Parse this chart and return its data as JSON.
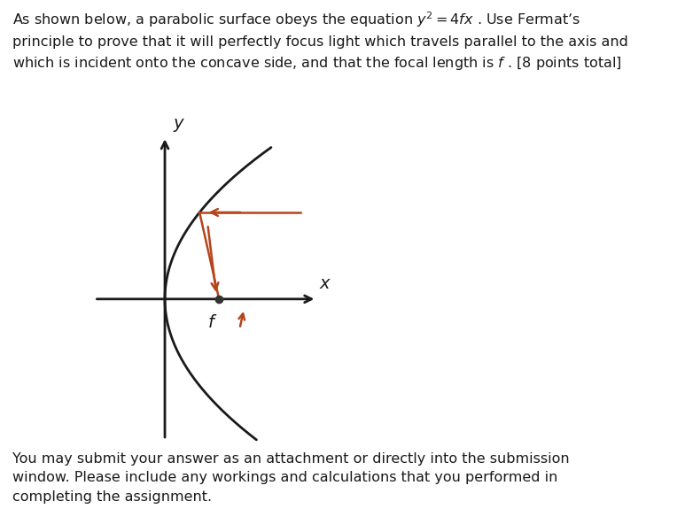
{
  "bg_color": "#ffffff",
  "parabola_color": "#1a1a1a",
  "axis_color": "#1a1a1a",
  "ray_color": "#b5451b",
  "focal_dot_color": "#333333",
  "top_line1": "As shown below, a parabolic surface obeys the equation $y^2 = 4fx$ . Use Fermat’s",
  "top_line2": "principle to prove that it will perfectly focus light which travels parallel to the axis and",
  "top_line3": "which is incident onto the concave side, and that the focal length is $f$ . [8 points total]",
  "bottom_line1": "You may submit your answer as an attachment or directly into the submission",
  "bottom_line2": "window. Please include any workings and calculations that you performed in",
  "bottom_line3": "completing the assignment.",
  "axis_x_label": "$x$",
  "axis_y_label": "$y$",
  "focal_label": "$f$",
  "parabola_f": 1.0,
  "y_hit": 1.6,
  "ray_right_x": 2.5,
  "xlim": [
    -1.5,
    3.0
  ],
  "ylim": [
    -2.8,
    3.2
  ],
  "focus_x": 1.0,
  "focus_y": 0.0,
  "fontsize_text": 11.5,
  "fontsize_axis_label": 14,
  "fontsize_focal_label": 14
}
